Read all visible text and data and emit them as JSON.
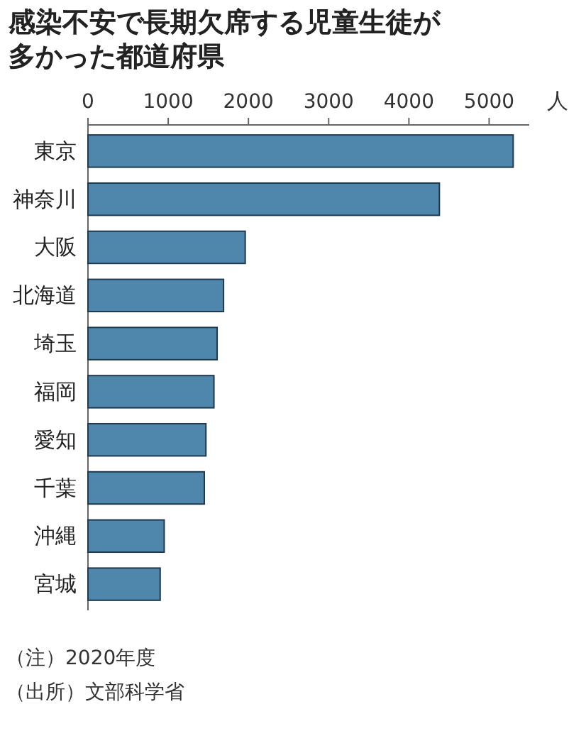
{
  "chart_data": {
    "type": "bar",
    "orientation": "horizontal",
    "title": "感染不安で長期欠席する児童生徒が多かった都道府県",
    "xlabel": "人",
    "categories": [
      "東京",
      "神奈川",
      "大阪",
      "北海道",
      "埼玉",
      "福岡",
      "愛知",
      "千葉",
      "沖縄",
      "宮城"
    ],
    "values": [
      5300,
      4380,
      1960,
      1690,
      1610,
      1570,
      1470,
      1450,
      950,
      900
    ],
    "color": "#4f86ab",
    "xlim": [
      0,
      5500
    ],
    "xticks": [
      0,
      1000,
      2000,
      3000,
      4000,
      5000
    ],
    "annotations": [
      "（注）2020年度",
      "（出所）文部科学省"
    ]
  }
}
